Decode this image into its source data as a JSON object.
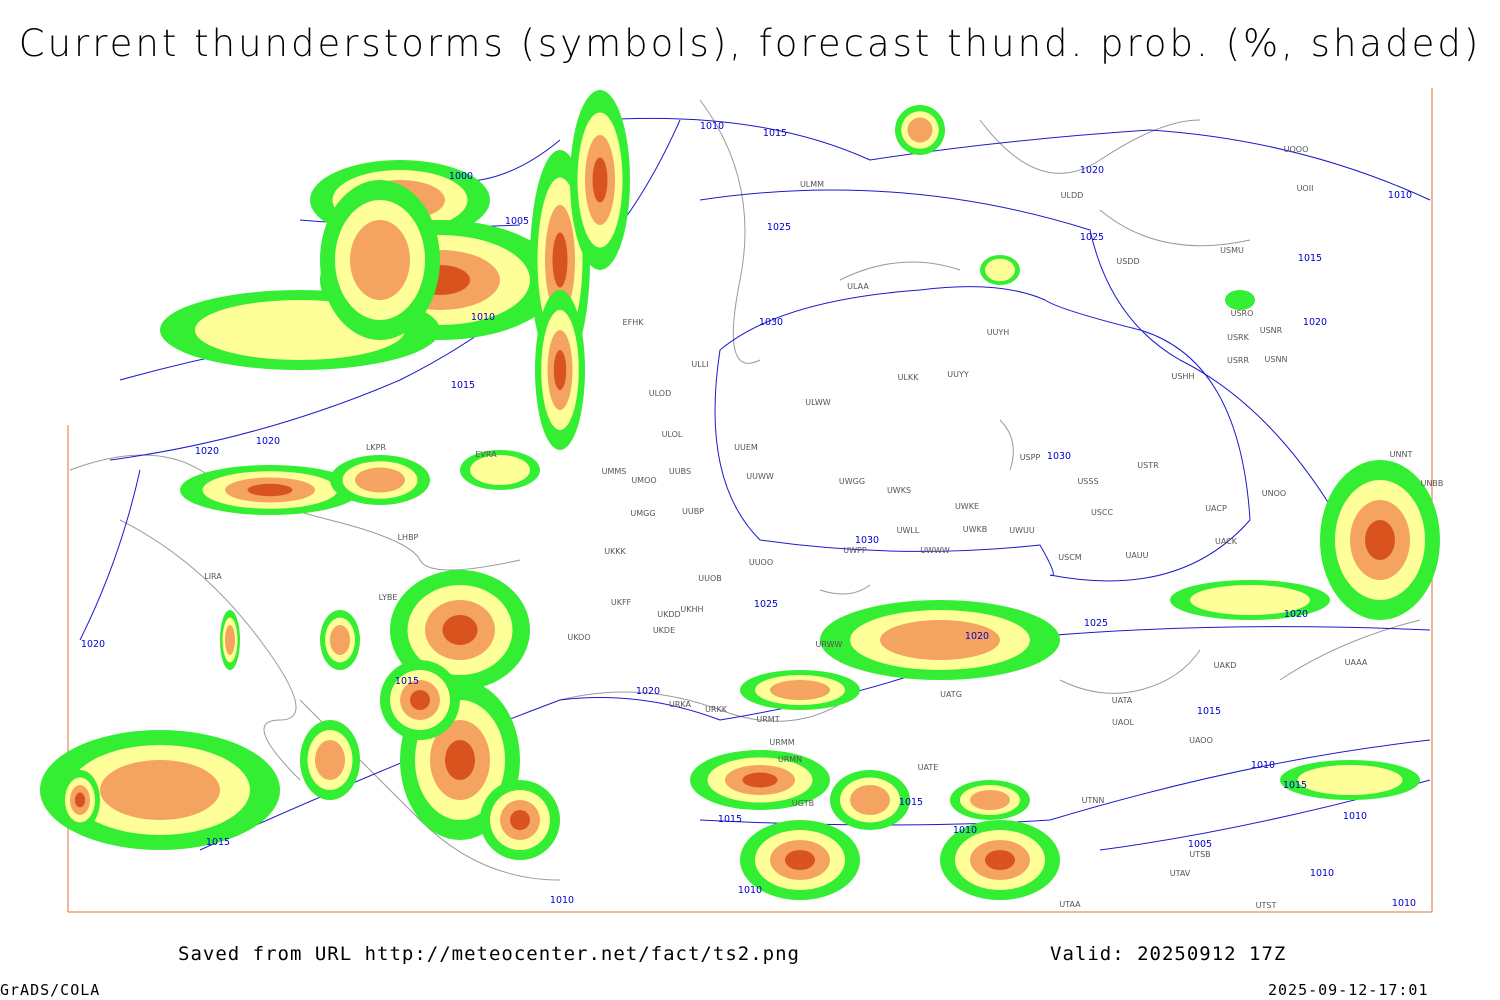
{
  "header": {
    "title": "Current thunderstorms (symbols), forecast thund. prob. (%, shaded)"
  },
  "map": {
    "isobar_labels": [
      1010,
      1015,
      1000,
      1005,
      1010,
      1015,
      1020,
      1020,
      1020,
      1015,
      1020,
      1015,
      1015,
      1010,
      1010,
      1015,
      1010,
      1025,
      1030,
      1030,
      1030,
      1025,
      1020,
      1025,
      1010,
      1015,
      1020,
      1025,
      1020,
      1020,
      1015,
      1010,
      1015,
      1010,
      1005,
      1010,
      1010
    ],
    "stations": [
      "ULMM",
      "ULDD",
      "ULAA",
      "UUYH",
      "ULKK",
      "UUYY",
      "ULWW",
      "UUEM",
      "UUWW",
      "UWGG",
      "UWKS",
      "UWKE",
      "UWKB",
      "UWLL",
      "UWUU",
      "UWPP",
      "UWWW",
      "UUOO",
      "UUOB",
      "UKHH",
      "UKDD",
      "UKDE",
      "UKFF",
      "UKKK",
      "UKOO",
      "UMMS",
      "UMOO",
      "UUBS",
      "UMGG",
      "UUBP",
      "ULOL",
      "ULOD",
      "ULLI",
      "EFHK",
      "EVRA",
      "LKPR",
      "LHBP",
      "LIRA",
      "LYBE",
      "USSS",
      "USTR",
      "USCC",
      "USCM",
      "UAUU",
      "UACP",
      "UACK",
      "UNOO",
      "USHH",
      "USPP",
      "USRR",
      "USNN",
      "USRK",
      "USRO",
      "USNR",
      "USDD",
      "USMU",
      "UOOO",
      "UOII",
      "UAKD",
      "UATA",
      "UAOL",
      "UAOO",
      "UTNN",
      "UTSB",
      "UTAV",
      "UTST",
      "UTAA",
      "URMT",
      "URMM",
      "URKK",
      "URKA",
      "URMN",
      "UGTB",
      "URWW",
      "UATG",
      "UATE",
      "UAAA",
      "UNNT",
      "UNBB"
    ]
  },
  "footer": {
    "source": "Saved from URL http://meteocenter.net/fact/ts2.png",
    "valid": "Valid: 20250912 17Z",
    "software": "GrADS/COLA",
    "timestamp": "2025-09-12-17:01"
  }
}
